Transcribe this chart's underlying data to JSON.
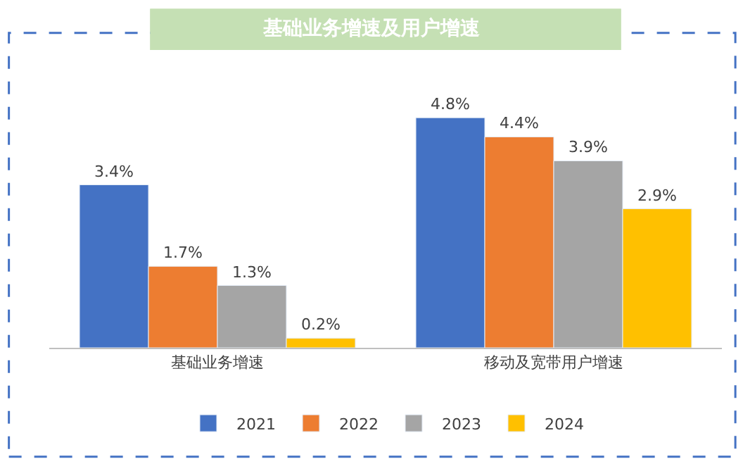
{
  "chart_data": {
    "type": "bar",
    "title": "基础业务增速及用户增速",
    "categories": [
      "基础业务增速",
      "移动及宽带用户增速"
    ],
    "series": [
      {
        "name": "2021",
        "color": "#4472c4",
        "values": [
          3.4,
          4.8
        ],
        "value_labels": [
          "3.4%",
          "4.8%"
        ]
      },
      {
        "name": "2022",
        "color": "#ed7d31",
        "values": [
          1.7,
          4.4
        ],
        "value_labels": [
          "1.7%",
          "4.4%"
        ]
      },
      {
        "name": "2023",
        "color": "#a5a5a5",
        "values": [
          1.3,
          3.9
        ],
        "value_labels": [
          "1.3%",
          "3.9%"
        ]
      },
      {
        "name": "2024",
        "color": "#ffc000",
        "values": [
          0.2,
          2.9
        ],
        "value_labels": [
          "0.2%",
          "2.9%"
        ]
      }
    ],
    "legend": "bottom"
  }
}
